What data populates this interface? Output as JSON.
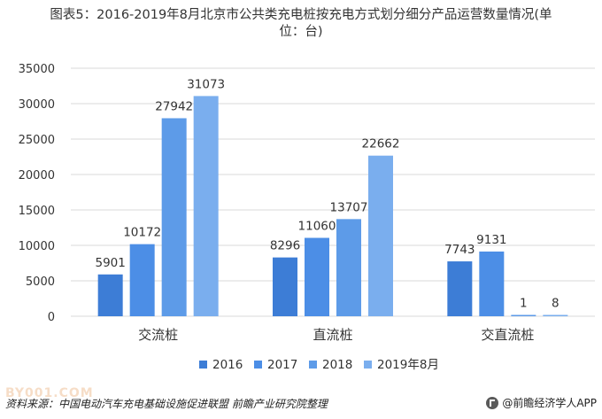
{
  "title_line1": "图表5：2016-2019年8月北京市公共类充电桩按充电方式划分细分产品运营数量情况(单",
  "title_line2": "位：台)",
  "footer": {
    "source": "资料来源：中国电动汽车充电基础设施促进联盟 前瞻产业研究院整理",
    "brand": "@前瞻经济学人APP",
    "watermark": "BY001.COM"
  },
  "colors": {
    "2016": "#3d7dd6",
    "2017": "#4c8ee6",
    "2018": "#5d9be8",
    "2019年8月": "#7aaeee",
    "grid": "#d9d9d9",
    "axis_text": "#333333"
  },
  "chart_data": {
    "type": "bar",
    "categories": [
      "交流桩",
      "直流桩",
      "交直流桩"
    ],
    "series": [
      {
        "name": "2016",
        "values": [
          5901,
          8296,
          7743
        ]
      },
      {
        "name": "2017",
        "values": [
          10172,
          11060,
          9131
        ]
      },
      {
        "name": "2018",
        "values": [
          27942,
          13707,
          1
        ]
      },
      {
        "name": "2019年8月",
        "values": [
          31073,
          22662,
          8
        ]
      }
    ],
    "ylim": [
      0,
      35000
    ],
    "yticks": [
      0,
      5000,
      10000,
      15000,
      20000,
      25000,
      30000,
      35000
    ],
    "grid": true,
    "legend_position": "bottom",
    "data_labels": true
  }
}
